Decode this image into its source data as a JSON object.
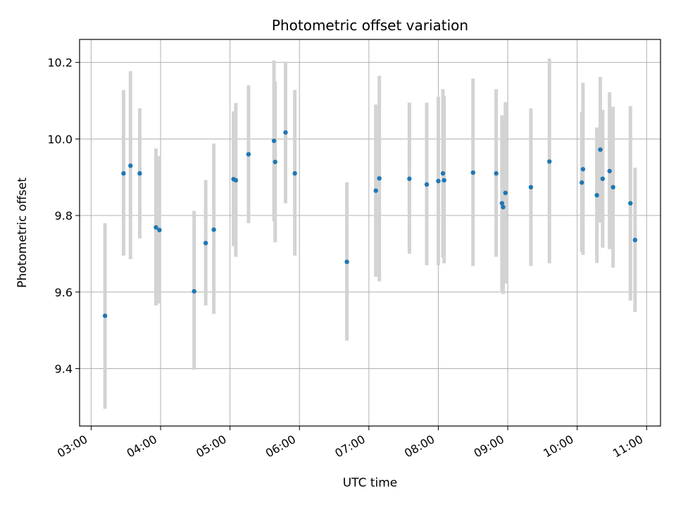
{
  "chart_data": {
    "type": "scatter",
    "title": "Photometric offset variation",
    "xlabel": "UTC time",
    "ylabel": "Photometric offset",
    "x_axis_kind": "time",
    "xlim": [
      "02:50",
      "11:12"
    ],
    "ylim": [
      9.25,
      10.26
    ],
    "x_ticks": [
      "03:00",
      "04:00",
      "05:00",
      "06:00",
      "07:00",
      "08:00",
      "09:00",
      "10:00",
      "11:00"
    ],
    "y_ticks": [
      9.4,
      9.6,
      9.8,
      10.0,
      10.2
    ],
    "y_tick_labels": [
      "9.4",
      "9.6",
      "9.8",
      "10.0",
      "10.2"
    ],
    "grid": true,
    "error_bar_style": "vertical bars",
    "colors": {
      "points": "#1f77b4",
      "error_bars": "#d3d3d3",
      "grid": "#b0b0b0",
      "axes": "#000000"
    },
    "points": [
      {
        "t": "03:12",
        "y": 9.538,
        "ylo": 9.295,
        "yhi": 9.78
      },
      {
        "t": "03:28",
        "y": 9.91,
        "ylo": 9.695,
        "yhi": 10.128
      },
      {
        "t": "03:34",
        "y": 9.93,
        "ylo": 9.686,
        "yhi": 10.177
      },
      {
        "t": "03:42",
        "y": 9.91,
        "ylo": 9.74,
        "yhi": 10.08
      },
      {
        "t": "03:56",
        "y": 9.769,
        "ylo": 9.565,
        "yhi": 9.975
      },
      {
        "t": "03:59",
        "y": 9.762,
        "ylo": 9.57,
        "yhi": 9.955
      },
      {
        "t": "04:29",
        "y": 9.602,
        "ylo": 9.397,
        "yhi": 9.812
      },
      {
        "t": "04:39",
        "y": 9.728,
        "ylo": 9.565,
        "yhi": 9.893
      },
      {
        "t": "04:46",
        "y": 9.763,
        "ylo": 9.543,
        "yhi": 9.988
      },
      {
        "t": "05:03",
        "y": 9.895,
        "ylo": 9.72,
        "yhi": 10.072
      },
      {
        "t": "05:05",
        "y": 9.892,
        "ylo": 9.692,
        "yhi": 10.094
      },
      {
        "t": "05:16",
        "y": 9.96,
        "ylo": 9.78,
        "yhi": 10.14
      },
      {
        "t": "05:38",
        "y": 9.995,
        "ylo": 9.785,
        "yhi": 10.205
      },
      {
        "t": "05:39",
        "y": 9.94,
        "ylo": 9.73,
        "yhi": 10.15
      },
      {
        "t": "05:48",
        "y": 10.017,
        "ylo": 9.832,
        "yhi": 10.202
      },
      {
        "t": "05:56",
        "y": 9.91,
        "ylo": 9.695,
        "yhi": 10.128
      },
      {
        "t": "06:41",
        "y": 9.679,
        "ylo": 9.473,
        "yhi": 9.887
      },
      {
        "t": "07:06",
        "y": 9.865,
        "ylo": 9.64,
        "yhi": 10.09
      },
      {
        "t": "07:09",
        "y": 9.897,
        "ylo": 9.628,
        "yhi": 10.165
      },
      {
        "t": "07:35",
        "y": 9.896,
        "ylo": 9.7,
        "yhi": 10.095
      },
      {
        "t": "07:50",
        "y": 9.881,
        "ylo": 9.67,
        "yhi": 10.095
      },
      {
        "t": "08:00",
        "y": 9.89,
        "ylo": 9.67,
        "yhi": 10.11
      },
      {
        "t": "08:04",
        "y": 9.91,
        "ylo": 9.69,
        "yhi": 10.13
      },
      {
        "t": "08:05",
        "y": 9.892,
        "ylo": 9.675,
        "yhi": 10.112
      },
      {
        "t": "08:30",
        "y": 9.912,
        "ylo": 9.668,
        "yhi": 10.158
      },
      {
        "t": "08:50",
        "y": 9.91,
        "ylo": 9.692,
        "yhi": 10.13
      },
      {
        "t": "08:55",
        "y": 9.832,
        "ylo": 9.6,
        "yhi": 10.062
      },
      {
        "t": "08:56",
        "y": 9.822,
        "ylo": 9.595,
        "yhi": 10.048
      },
      {
        "t": "08:58",
        "y": 9.859,
        "ylo": 9.622,
        "yhi": 10.096
      },
      {
        "t": "09:20",
        "y": 9.874,
        "ylo": 9.668,
        "yhi": 10.08
      },
      {
        "t": "09:36",
        "y": 9.941,
        "ylo": 9.675,
        "yhi": 10.21
      },
      {
        "t": "10:04",
        "y": 9.886,
        "ylo": 9.705,
        "yhi": 10.07
      },
      {
        "t": "10:05",
        "y": 9.921,
        "ylo": 9.697,
        "yhi": 10.147
      },
      {
        "t": "10:17",
        "y": 9.853,
        "ylo": 9.676,
        "yhi": 10.03
      },
      {
        "t": "10:20",
        "y": 9.972,
        "ylo": 9.782,
        "yhi": 10.162
      },
      {
        "t": "10:22",
        "y": 9.896,
        "ylo": 9.716,
        "yhi": 10.076
      },
      {
        "t": "10:28",
        "y": 9.916,
        "ylo": 9.712,
        "yhi": 10.122
      },
      {
        "t": "10:31",
        "y": 9.874,
        "ylo": 9.664,
        "yhi": 10.084
      },
      {
        "t": "10:46",
        "y": 9.832,
        "ylo": 9.578,
        "yhi": 10.086
      },
      {
        "t": "10:50",
        "y": 9.736,
        "ylo": 9.548,
        "yhi": 9.925
      }
    ]
  }
}
